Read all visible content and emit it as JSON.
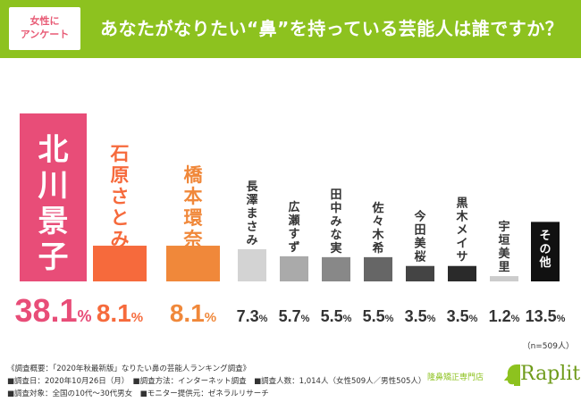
{
  "header": {
    "badge_line1": "女性に",
    "badge_line2": "アンケート",
    "title": "あなたがなりたい“鼻”を持っている芸能人は誰ですか？"
  },
  "chart_data": {
    "type": "bar",
    "title": "あなたがなりたい“鼻”を持っている芸能人は誰ですか？",
    "categories": [
      "北川景子",
      "石原さとみ",
      "橋本環奈",
      "長澤まさみ",
      "広瀬すず",
      "田中みな実",
      "佐々木希",
      "今田美桜",
      "黒木メイサ",
      "宇垣美里",
      "その他"
    ],
    "values": [
      38.1,
      8.1,
      8.1,
      7.3,
      5.7,
      5.5,
      5.5,
      3.5,
      3.5,
      1.2,
      13.5
    ],
    "value_labels": [
      "38.1%",
      "8.1%",
      "8.1%",
      "7.3%",
      "5.7%",
      "5.5%",
      "5.5%",
      "3.5%",
      "3.5%",
      "1.2%",
      "13.5%"
    ],
    "unit": "%",
    "sample_note": "（n=509人）",
    "ylim": [
      0,
      40
    ],
    "grid": false,
    "colors": [
      "#e84d78",
      "#f66a3c",
      "#f0883a",
      "#d3d3d3",
      "#aaaaaa",
      "#888888",
      "#666666",
      "#444444",
      "#2a2a2a",
      "#cccccc",
      "#111111"
    ],
    "label_colors": [
      "#e84d78",
      "#f66a3c",
      "#f0883a",
      "#333333",
      "#333333",
      "#333333",
      "#333333",
      "#333333",
      "#333333",
      "#333333",
      "#333333"
    ],
    "category_text_colors": [
      "#ffffff",
      "#f66a3c",
      "#f0883a",
      "#333333",
      "#333333",
      "#333333",
      "#333333",
      "#333333",
      "#333333",
      "#333333",
      "#ffffff"
    ]
  },
  "survey": {
    "line1": "《調査概要：「2020年秋最新版」なりたい鼻の芸能人ランキング調査》",
    "line2": "■調査日：2020年10月26日（月）　■調査方法：インターネット調査　■調査人数：1,014人（女性509人／男性505人）",
    "line3": "■調査対象：全国の10代〜30代男女　■モニター提供元：ゼネラルリサーチ"
  },
  "brand": {
    "tagline": "隆鼻矯正専門店",
    "name": "Raplit",
    "color": "#8dc21f"
  }
}
